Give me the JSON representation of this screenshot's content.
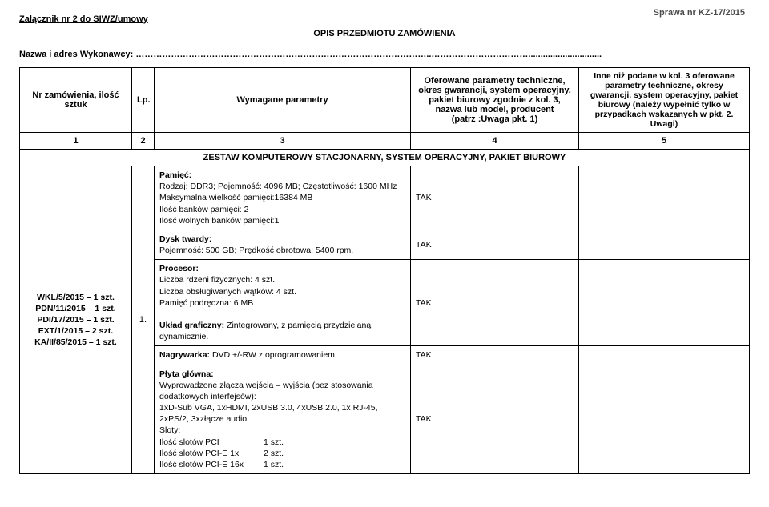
{
  "header": {
    "case_number": "Sprawa nr KZ-17/2015",
    "attachment": "Załącznik nr 2 do SIWZ/umowy",
    "title": "OPIS PRZEDMIOTU ZAMÓWIENIA",
    "contractor_label": "Nazwa i adres Wykonawcy:",
    "contractor_dots": "………………………………………………………………………………………..…………………………….............................."
  },
  "columns": {
    "c1": "Nr zamówienia, ilość sztuk",
    "c2": "Lp.",
    "c3": "Wymagane parametry",
    "c4": "Oferowane parametry techniczne, okres gwarancji, system operacyjny, pakiet biurowy zgodnie z kol. 3,\nnazwa lub model, producent\n(patrz :Uwaga pkt. 1)",
    "c5": "Inne niż podane w kol. 3 oferowane parametry techniczne, okresy gwarancji, system operacyjny, pakiet biurowy (należy wypełnić tylko w przypadkach wskazanych w pkt. 2. Uwagi)",
    "n1": "1",
    "n2": "2",
    "n3": "3",
    "n4": "4",
    "n5": "5"
  },
  "section_title": "ZESTAW KOMPUTEROWY STACJONARNY, SYSTEM OPERACYJNY, PAKIET BIUROWY",
  "units": [
    "WKL/5/2015 – 1 szt.",
    "PDN/11/2015 – 1 szt.",
    "PDI/17/2015 – 1 szt.",
    "EXT/1/2015 – 2 szt.",
    "KA/II/85/2015 – 1 szt."
  ],
  "lp": "1.",
  "rows": [
    {
      "title": "Pamięć:",
      "body": "Rodzaj: DDR3; Pojemność: 4096 MB; Częstotliwość: 1600 MHz\nMaksymalna wielkość pamięci:16384 MB\nIlość banków pamięci: 2\nIlość wolnych banków pamięci:1",
      "offer": "TAK"
    },
    {
      "title": "Dysk twardy:",
      "body": "Pojemność: 500 GB; Prędkość obrotowa: 5400 rpm.",
      "offer": "TAK"
    },
    {
      "title": "Procesor:",
      "body": "Liczba rdzeni fizycznych: 4 szt.\nLiczba obsługiwanych wątków: 4 szt.\nPamięć podręczna: 6 MB",
      "extra_title": "Układ graficzny:",
      "extra_body": " Zintegrowany, z pamięcią przydzielaną dynamicznie.",
      "offer": "TAK"
    },
    {
      "title": "Nagrywarka:",
      "body": " DVD +/-RW z oprogramowaniem.",
      "offer": "TAK",
      "inline": true
    },
    {
      "title": "Płyta główna:",
      "body": "Wyprowadzone złącza wejścia – wyjścia (bez stosowania dodatkowych interfejsów):\n1xD-Sub VGA,  1xHDMI, 2xUSB 3.0, 4xUSB 2.0, 1x RJ-45, 2xPS/2, 3xzłącze audio\nSloty:",
      "slots": [
        {
          "label": "Ilość slotów PCI",
          "qty": "1 szt."
        },
        {
          "label": "Ilość slotów PCI-E 1x",
          "qty": "2 szt."
        },
        {
          "label": "Ilość slotów PCI-E 16x",
          "qty": "1 szt."
        }
      ],
      "offer": "TAK"
    }
  ]
}
